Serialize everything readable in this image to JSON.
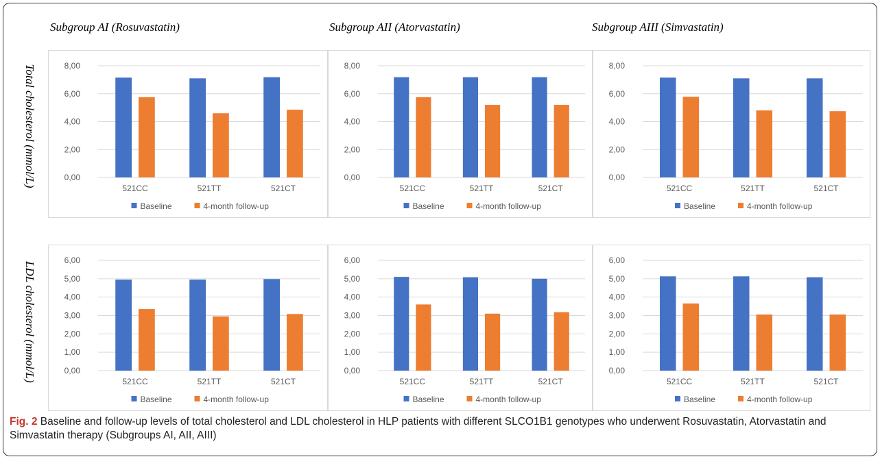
{
  "column_titles": [
    "Subgroup AI (Rosuvastatin)",
    "Subgroup AII (Atorvastatin)",
    "Subgroup AIII (Simvastatin)"
  ],
  "row_titles": [
    "Total cholesterol (mmol/L)",
    "LDL cholesterol (mmol/L)"
  ],
  "caption": {
    "lead": "Fig. 2",
    "text": " Baseline and follow-up levels of total cholesterol and LDL cholesterol in HLP patients with different SLCO1B1 genotypes who underwent Rosuvastatin, Atorvastatin and Simvastatin therapy (Subgroups AI, AII, AIII)"
  },
  "colors": {
    "baseline": "#4472c4",
    "followup": "#ed7d31",
    "grid": "#d9d9d9",
    "axis_text": "#595959"
  },
  "chart_data": [
    {
      "type": "bar",
      "categories": [
        "521CC",
        "521TT",
        "521CT"
      ],
      "series": [
        {
          "name": "Baseline",
          "values": [
            7.15,
            7.1,
            7.18
          ]
        },
        {
          "name": "4-month follow-up",
          "values": [
            5.75,
            4.6,
            4.85
          ]
        }
      ],
      "ylim": [
        0,
        8
      ],
      "yticks": [
        "0,00",
        "2,00",
        "4,00",
        "6,00",
        "8,00"
      ],
      "legend": "bottom"
    },
    {
      "type": "bar",
      "categories": [
        "521CC",
        "521TT",
        "521CT"
      ],
      "series": [
        {
          "name": "Baseline",
          "values": [
            7.18,
            7.18,
            7.18
          ]
        },
        {
          "name": "4-month follow-up",
          "values": [
            5.75,
            5.2,
            5.2
          ]
        }
      ],
      "ylim": [
        0,
        8
      ],
      "yticks": [
        "0,00",
        "2,00",
        "4,00",
        "6,00",
        "8,00"
      ],
      "legend": "bottom"
    },
    {
      "type": "bar",
      "categories": [
        "521CC",
        "521TT",
        "521CT"
      ],
      "series": [
        {
          "name": "Baseline",
          "values": [
            7.15,
            7.1,
            7.1
          ]
        },
        {
          "name": "4-month follow-up",
          "values": [
            5.78,
            4.8,
            4.75
          ]
        }
      ],
      "ylim": [
        0,
        8
      ],
      "yticks": [
        "0,00",
        "2,00",
        "4,00",
        "6,00",
        "8,00"
      ],
      "legend": "bottom"
    },
    {
      "type": "bar",
      "categories": [
        "521CC",
        "521TT",
        "521CT"
      ],
      "series": [
        {
          "name": "Baseline",
          "values": [
            4.95,
            4.95,
            4.98
          ]
        },
        {
          "name": "4-month follow-up",
          "values": [
            3.35,
            2.95,
            3.08
          ]
        }
      ],
      "ylim": [
        0,
        6
      ],
      "yticks": [
        "0,00",
        "1,00",
        "2,00",
        "3,00",
        "4,00",
        "5,00",
        "6,00"
      ],
      "legend": "bottom"
    },
    {
      "type": "bar",
      "categories": [
        "521CC",
        "521TT",
        "521CT"
      ],
      "series": [
        {
          "name": "Baseline",
          "values": [
            5.1,
            5.08,
            5.0
          ]
        },
        {
          "name": "4-month follow-up",
          "values": [
            3.6,
            3.1,
            3.18
          ]
        }
      ],
      "ylim": [
        0,
        6
      ],
      "yticks": [
        "0,00",
        "1,00",
        "2,00",
        "3,00",
        "4,00",
        "5,00",
        "6,00"
      ],
      "legend": "bottom"
    },
    {
      "type": "bar",
      "categories": [
        "521CC",
        "521TT",
        "521CT"
      ],
      "series": [
        {
          "name": "Baseline",
          "values": [
            5.13,
            5.13,
            5.08
          ]
        },
        {
          "name": "4-month follow-up",
          "values": [
            3.65,
            3.05,
            3.05
          ]
        }
      ],
      "ylim": [
        0,
        6
      ],
      "yticks": [
        "0,00",
        "1,00",
        "2,00",
        "3,00",
        "4,00",
        "5,00",
        "6,00"
      ],
      "legend": "bottom"
    }
  ]
}
